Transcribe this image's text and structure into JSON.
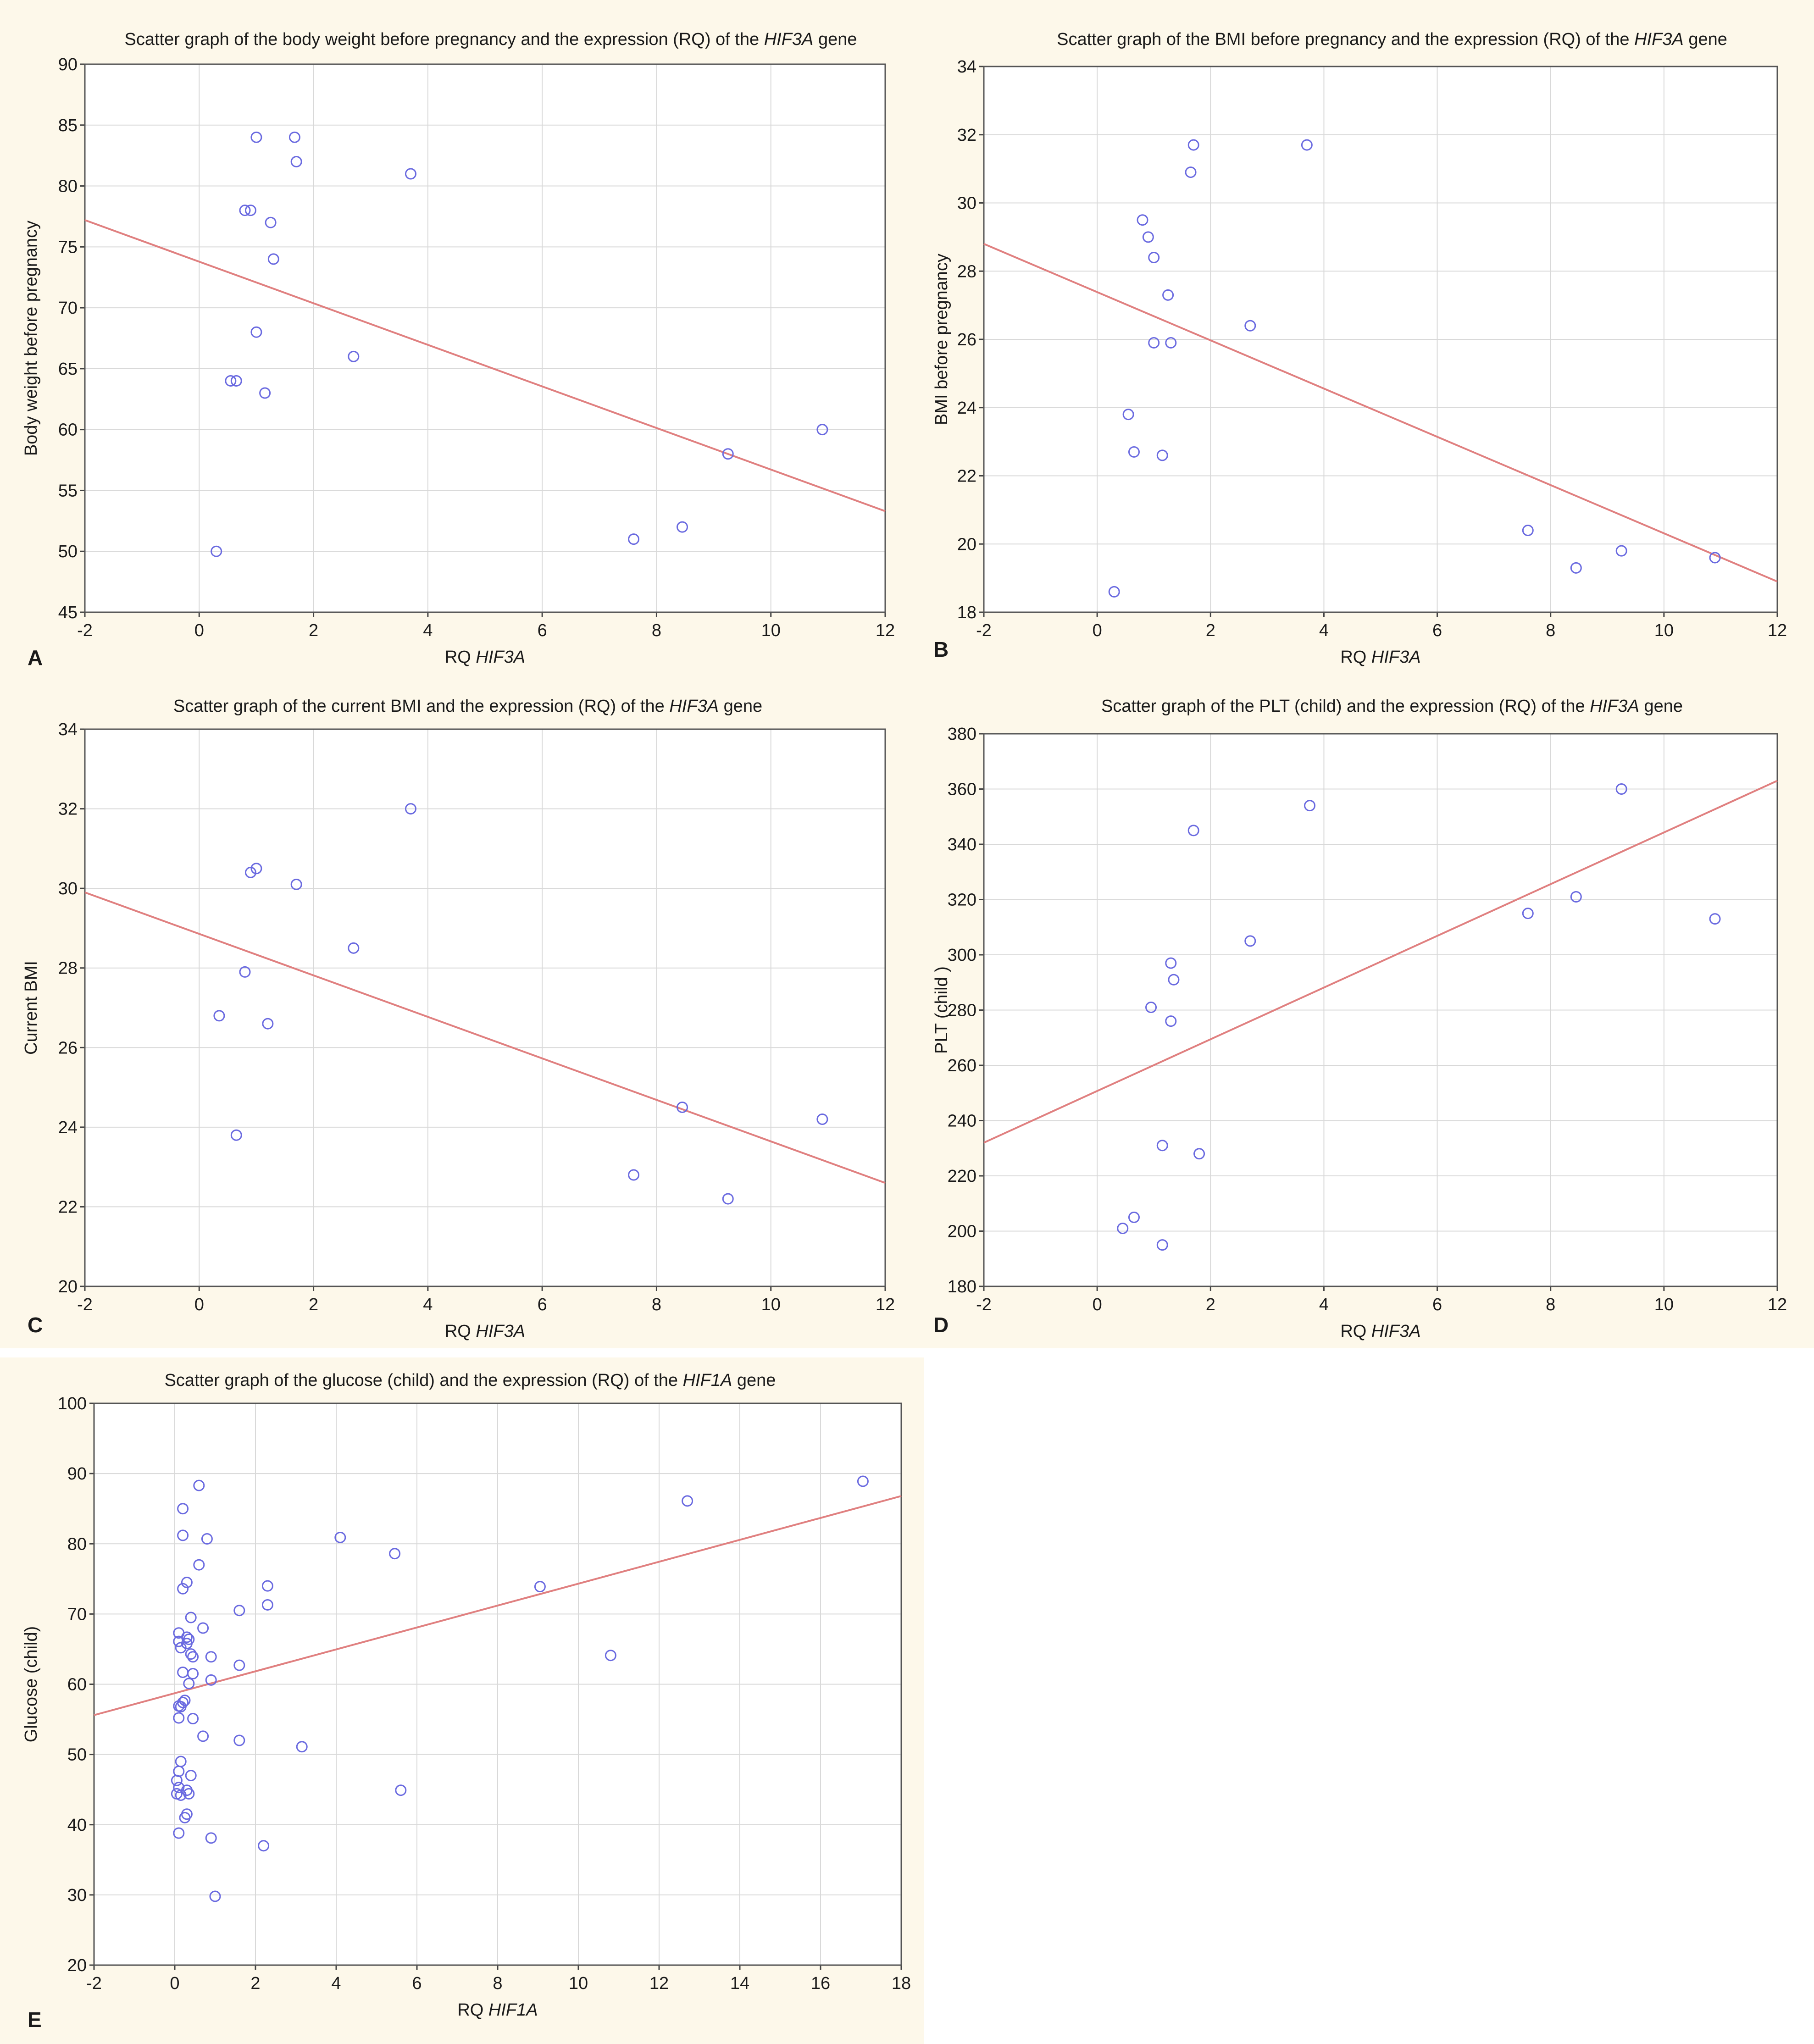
{
  "colors": {
    "background": "#fdf8ea",
    "plot": "#ffffff",
    "grid": "#d9d9d9",
    "fit_line": "#e08080",
    "points": "#6a6ae0"
  },
  "chart_data": [
    {
      "panel": "A",
      "type": "scatter",
      "title": {
        "pre": "Scatter graph of the body weight before pregnancy and the expression (RQ) of the ",
        "gene": "HIF3A",
        "post": " gene"
      },
      "xlabel": {
        "pre": "RQ ",
        "gene": "HIF3A"
      },
      "ylabel": "Body weight before pregnancy",
      "xlim": [
        -2,
        12
      ],
      "ylim": [
        45,
        90
      ],
      "xticks": [
        -2,
        0,
        2,
        4,
        6,
        8,
        10,
        12
      ],
      "yticks": [
        45,
        50,
        55,
        60,
        65,
        70,
        75,
        80,
        85,
        90
      ],
      "grid": true,
      "fit": {
        "x": [
          -2,
          12
        ],
        "y": [
          77.2,
          53.3
        ]
      },
      "points": [
        [
          1.0,
          84
        ],
        [
          1.67,
          84
        ],
        [
          1.7,
          82
        ],
        [
          3.7,
          81
        ],
        [
          0.8,
          78
        ],
        [
          0.9,
          78
        ],
        [
          1.25,
          77
        ],
        [
          1.3,
          74
        ],
        [
          1.0,
          68
        ],
        [
          2.7,
          66
        ],
        [
          0.55,
          64
        ],
        [
          0.65,
          64
        ],
        [
          1.15,
          63
        ],
        [
          10.9,
          60
        ],
        [
          9.25,
          58
        ],
        [
          8.45,
          52
        ],
        [
          7.6,
          51
        ],
        [
          0.3,
          50
        ]
      ]
    },
    {
      "panel": "B",
      "type": "scatter",
      "title": {
        "pre": "Scatter graph of the BMI before pregnancy and the expression (RQ) of the ",
        "gene": "HIF3A",
        "post": " gene"
      },
      "xlabel": {
        "pre": "RQ ",
        "gene": "HIF3A"
      },
      "ylabel": "BMI before pregnancy",
      "xlim": [
        -2,
        12
      ],
      "ylim": [
        18,
        34
      ],
      "xticks": [
        -2,
        0,
        2,
        4,
        6,
        8,
        10,
        12
      ],
      "yticks": [
        18,
        20,
        22,
        24,
        26,
        28,
        30,
        32,
        34
      ],
      "grid": true,
      "fit": {
        "x": [
          -2,
          12
        ],
        "y": [
          28.8,
          18.9
        ]
      },
      "points": [
        [
          1.7,
          31.7
        ],
        [
          3.7,
          31.7
        ],
        [
          1.65,
          30.9
        ],
        [
          0.8,
          29.5
        ],
        [
          0.9,
          29.0
        ],
        [
          1.0,
          28.4
        ],
        [
          1.25,
          27.3
        ],
        [
          2.7,
          26.4
        ],
        [
          1.0,
          25.9
        ],
        [
          1.3,
          25.9
        ],
        [
          0.55,
          23.8
        ],
        [
          0.65,
          22.7
        ],
        [
          1.15,
          22.6
        ],
        [
          7.6,
          20.4
        ],
        [
          9.25,
          19.8
        ],
        [
          10.9,
          19.6
        ],
        [
          8.45,
          19.3
        ],
        [
          0.3,
          18.6
        ]
      ]
    },
    {
      "panel": "C",
      "type": "scatter",
      "title": {
        "pre": "Scatter graph of the current BMI and the expression (RQ) of the ",
        "gene": "HIF3A",
        "post": " gene"
      },
      "xlabel": {
        "pre": "RQ ",
        "gene": "HIF3A"
      },
      "ylabel": "Current BMI",
      "xlim": [
        -2,
        12
      ],
      "ylim": [
        20,
        34
      ],
      "xticks": [
        -2,
        0,
        2,
        4,
        6,
        8,
        10,
        12
      ],
      "yticks": [
        20,
        22,
        24,
        26,
        28,
        30,
        32,
        34
      ],
      "grid": true,
      "fit": {
        "x": [
          -2,
          12
        ],
        "y": [
          29.9,
          22.6
        ]
      },
      "points": [
        [
          3.7,
          32.0
        ],
        [
          1.0,
          30.5
        ],
        [
          0.9,
          30.4
        ],
        [
          1.7,
          30.1
        ],
        [
          2.7,
          28.5
        ],
        [
          0.8,
          27.9
        ],
        [
          0.35,
          26.8
        ],
        [
          1.2,
          26.6
        ],
        [
          0.65,
          23.8
        ],
        [
          8.45,
          24.5
        ],
        [
          10.9,
          24.2
        ],
        [
          7.6,
          22.8
        ],
        [
          9.25,
          22.2
        ]
      ]
    },
    {
      "panel": "D",
      "type": "scatter",
      "title": {
        "pre": "Scatter graph of the PLT (child) and the expression (RQ) of the ",
        "gene": "HIF3A",
        "post": " gene"
      },
      "xlabel": {
        "pre": "RQ ",
        "gene": "HIF3A"
      },
      "ylabel": "PLT (child )",
      "xlim": [
        -2,
        12
      ],
      "ylim": [
        180,
        380
      ],
      "xticks": [
        -2,
        0,
        2,
        4,
        6,
        8,
        10,
        12
      ],
      "yticks": [
        180,
        200,
        220,
        240,
        260,
        280,
        300,
        320,
        340,
        360,
        380
      ],
      "grid": true,
      "fit": {
        "x": [
          -2,
          12
        ],
        "y": [
          232,
          363
        ]
      },
      "points": [
        [
          9.25,
          360
        ],
        [
          3.75,
          354
        ],
        [
          1.7,
          345
        ],
        [
          8.45,
          321
        ],
        [
          7.6,
          315
        ],
        [
          10.9,
          313
        ],
        [
          2.7,
          305
        ],
        [
          1.3,
          297
        ],
        [
          1.35,
          291
        ],
        [
          0.95,
          281
        ],
        [
          1.3,
          276
        ],
        [
          1.15,
          231
        ],
        [
          1.8,
          228
        ],
        [
          0.65,
          205
        ],
        [
          0.45,
          201
        ],
        [
          1.15,
          195
        ]
      ]
    },
    {
      "panel": "E",
      "type": "scatter",
      "title": {
        "pre": "Scatter graph of the glucose (child) and the expression (RQ) of the ",
        "gene": "HIF1A",
        "post": " gene"
      },
      "xlabel": {
        "pre": "RQ ",
        "gene": "HIF1A"
      },
      "ylabel": "Glucose (child)",
      "xlim": [
        -2,
        18
      ],
      "ylim": [
        20,
        100
      ],
      "xticks": [
        -2,
        0,
        2,
        4,
        6,
        8,
        10,
        12,
        14,
        16,
        18
      ],
      "yticks": [
        20,
        30,
        40,
        50,
        60,
        70,
        80,
        90,
        100
      ],
      "grid": true,
      "fit": {
        "x": [
          -2,
          18
        ],
        "y": [
          55.6,
          86.8
        ]
      },
      "points": [
        [
          0.6,
          88.3
        ],
        [
          0.2,
          85.0
        ],
        [
          0.2,
          81.2
        ],
        [
          0.8,
          80.7
        ],
        [
          0.6,
          77.0
        ],
        [
          0.3,
          74.5
        ],
        [
          0.2,
          73.6
        ],
        [
          2.3,
          74.0
        ],
        [
          2.3,
          71.3
        ],
        [
          1.6,
          70.5
        ],
        [
          0.4,
          69.5
        ],
        [
          0.7,
          68.0
        ],
        [
          0.1,
          67.3
        ],
        [
          0.3,
          66.7
        ],
        [
          0.35,
          66.4
        ],
        [
          0.1,
          66.1
        ],
        [
          0.3,
          65.8
        ],
        [
          0.15,
          65.2
        ],
        [
          0.4,
          64.3
        ],
        [
          0.45,
          63.9
        ],
        [
          0.9,
          63.9
        ],
        [
          1.6,
          62.7
        ],
        [
          0.2,
          61.7
        ],
        [
          0.45,
          61.5
        ],
        [
          0.9,
          60.6
        ],
        [
          0.35,
          60.1
        ],
        [
          0.25,
          57.7
        ],
        [
          0.2,
          57.4
        ],
        [
          0.1,
          56.9
        ],
        [
          0.15,
          56.8
        ],
        [
          0.1,
          55.2
        ],
        [
          0.45,
          55.1
        ],
        [
          0.7,
          52.6
        ],
        [
          1.6,
          52.0
        ],
        [
          3.15,
          51.1
        ],
        [
          0.15,
          49.0
        ],
        [
          0.1,
          47.6
        ],
        [
          0.4,
          47.0
        ],
        [
          0.05,
          46.3
        ],
        [
          0.1,
          45.3
        ],
        [
          5.6,
          44.9
        ],
        [
          0.3,
          44.9
        ],
        [
          0.05,
          44.4
        ],
        [
          0.15,
          44.2
        ],
        [
          0.35,
          44.4
        ],
        [
          0.3,
          41.5
        ],
        [
          0.25,
          41.0
        ],
        [
          0.1,
          38.8
        ],
        [
          0.9,
          38.1
        ],
        [
          2.2,
          37.0
        ],
        [
          1.0,
          29.8
        ],
        [
          4.1,
          80.9
        ],
        [
          5.45,
          78.6
        ],
        [
          9.05,
          73.9
        ],
        [
          10.8,
          64.1
        ],
        [
          12.7,
          86.1
        ],
        [
          17.05,
          88.9
        ]
      ]
    }
  ]
}
